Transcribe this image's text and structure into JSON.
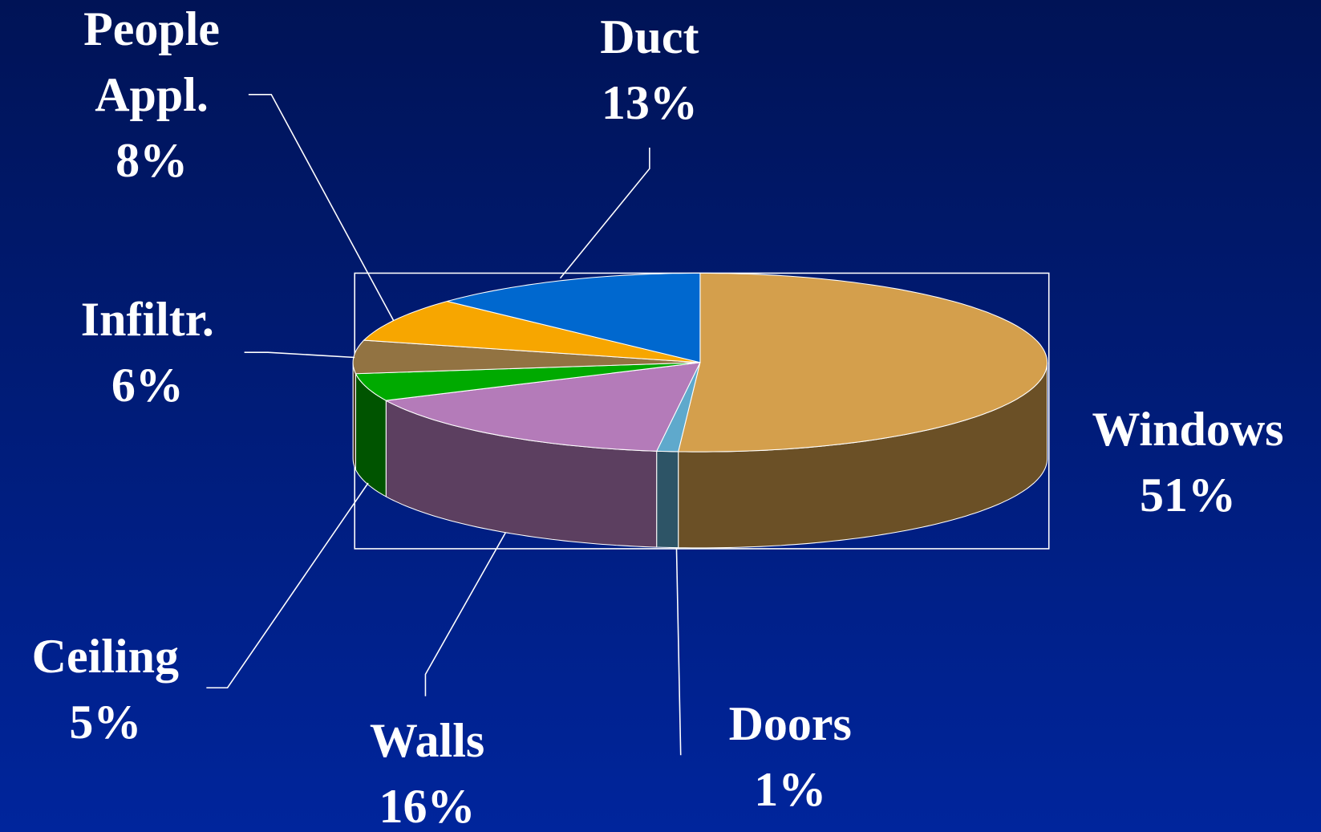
{
  "chart_data": {
    "type": "pie3d",
    "categories": [
      "Windows",
      "Doors",
      "Walls",
      "Ceiling",
      "Infiltr.",
      "People Appl.",
      "Duct"
    ],
    "values": [
      51,
      1,
      16,
      5,
      6,
      8,
      13
    ],
    "value_labels": [
      "51%",
      "1%",
      "16%",
      "5%",
      "6%",
      "8%",
      "13%"
    ],
    "colors": [
      "#d49f4c",
      "#5fa9cc",
      "#b47bb9",
      "#00aa00",
      "#927342",
      "#f7a600",
      "#0068cf"
    ],
    "side_colors": [
      "#6b5026",
      "#2d5466",
      "#5c3f60",
      "#005400",
      "#4b3a21",
      "#7b5300",
      "#003467"
    ]
  }
}
